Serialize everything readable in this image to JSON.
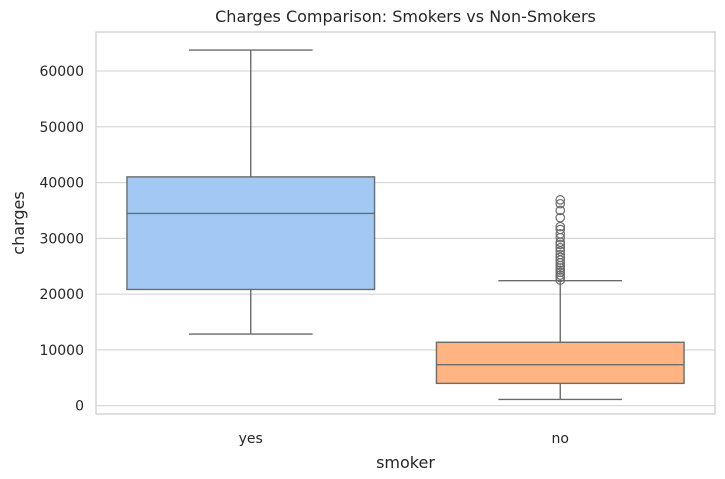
{
  "chart_data": {
    "type": "box",
    "title": "Charges Comparison: Smokers vs Non-Smokers",
    "xlabel": "smoker",
    "ylabel": "charges",
    "ylim": [
      -1500,
      67000
    ],
    "yticks": [
      0,
      10000,
      20000,
      30000,
      40000,
      50000,
      60000
    ],
    "ytick_labels": [
      "0",
      "10000",
      "20000",
      "30000",
      "40000",
      "50000",
      "60000"
    ],
    "grid": true,
    "categories": [
      "yes",
      "no"
    ],
    "boxes": [
      {
        "category": "yes",
        "color": "#a1c9f4",
        "whisker_low": 12830,
        "q1": 20830,
        "median": 34460,
        "q3": 41020,
        "whisker_high": 63770,
        "outliers": []
      },
      {
        "category": "no",
        "color": "#ffb482",
        "whisker_low": 1120,
        "q1": 3990,
        "median": 7350,
        "q3": 11360,
        "whisker_high": 22410,
        "outliers": [
          22500,
          23000,
          23400,
          23900,
          24300,
          24700,
          25100,
          25600,
          26100,
          26600,
          27100,
          27700,
          28300,
          28900,
          29300,
          30100,
          30800,
          31600,
          32100,
          33700,
          35000,
          36200,
          36900
        ]
      }
    ]
  }
}
